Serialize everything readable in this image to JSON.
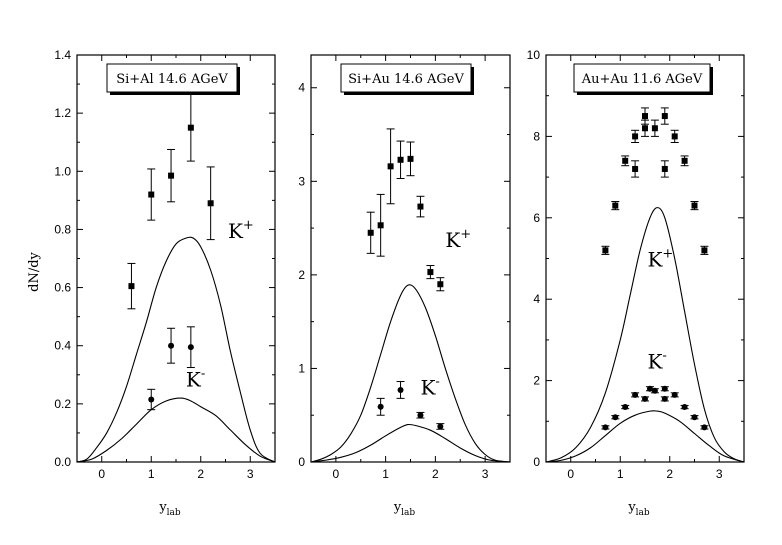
{
  "ylabel": "dN/dy",
  "xlabel": {
    "main": "y",
    "sub": "lab"
  },
  "chart_data": [
    {
      "type": "scatter",
      "title": "Si+Al 14.6 AGeV",
      "xlim": [
        -0.5,
        3.5
      ],
      "ylim": [
        0,
        1.4
      ],
      "x_ticks": [
        0,
        1,
        2,
        3
      ],
      "y_ticks": [
        0.0,
        0.2,
        0.4,
        0.6,
        0.8,
        1.0,
        1.2,
        1.4
      ],
      "y_tick_labels": [
        "0.0",
        "0.2",
        "0.4",
        "0.6",
        "0.8",
        "1.0",
        "1.2",
        "1.4"
      ],
      "series": [
        {
          "name": "K+",
          "kind": "data",
          "marker": "square",
          "x": [
            0.6,
            1.0,
            1.4,
            1.8,
            2.2
          ],
          "y": [
            0.605,
            0.92,
            0.985,
            1.15,
            0.89
          ],
          "err": [
            0.078,
            0.088,
            0.09,
            0.115,
            0.125
          ]
        },
        {
          "name": "K-",
          "kind": "data",
          "marker": "circle",
          "x": [
            1.0,
            1.4,
            1.8
          ],
          "y": [
            0.215,
            0.4,
            0.395
          ],
          "err": [
            0.035,
            0.06,
            0.07
          ]
        },
        {
          "name": "K+",
          "kind": "model",
          "x": [
            -0.5,
            -0.3,
            -0.1,
            0.1,
            0.3,
            0.5,
            0.7,
            0.9,
            1.1,
            1.3,
            1.5,
            1.7,
            1.85,
            2.0,
            2.2,
            2.4,
            2.6,
            2.8,
            3.0,
            3.2,
            3.5
          ],
          "y": [
            0.0,
            0.01,
            0.05,
            0.1,
            0.17,
            0.26,
            0.37,
            0.48,
            0.6,
            0.69,
            0.75,
            0.77,
            0.77,
            0.74,
            0.66,
            0.54,
            0.38,
            0.24,
            0.11,
            0.03,
            0.0
          ]
        },
        {
          "name": "K-",
          "kind": "model",
          "x": [
            -0.5,
            -0.2,
            0.1,
            0.4,
            0.7,
            1.0,
            1.3,
            1.6,
            1.8,
            2.0,
            2.3,
            2.6,
            2.9,
            3.2,
            3.5
          ],
          "y": [
            0.0,
            0.01,
            0.04,
            0.08,
            0.13,
            0.18,
            0.21,
            0.22,
            0.21,
            0.19,
            0.16,
            0.11,
            0.06,
            0.02,
            0.0
          ]
        }
      ],
      "labels": [
        {
          "text": "K",
          "sup": "+",
          "x": 2.55,
          "y": 0.77
        },
        {
          "text": "K",
          "sup": "-",
          "x": 1.7,
          "y": 0.26
        }
      ]
    },
    {
      "type": "scatter",
      "title": "Si+Au 14.6 AGeV",
      "xlim": [
        -0.5,
        3.5
      ],
      "ylim": [
        0,
        4.35
      ],
      "x_ticks": [
        0,
        1,
        2,
        3
      ],
      "y_ticks": [
        0,
        1,
        2,
        3,
        4
      ],
      "y_tick_labels": [
        "0",
        "1",
        "2",
        "3",
        "4"
      ],
      "series": [
        {
          "name": "K+",
          "kind": "data",
          "marker": "square",
          "x": [
            0.7,
            0.9,
            1.1,
            1.3,
            1.5,
            1.7,
            1.9,
            2.1
          ],
          "y": [
            2.45,
            2.53,
            3.16,
            3.23,
            3.24,
            2.73,
            2.03,
            1.9
          ],
          "err": [
            0.22,
            0.33,
            0.4,
            0.2,
            0.18,
            0.11,
            0.07,
            0.07
          ]
        },
        {
          "name": "K-",
          "kind": "data",
          "marker": "circle",
          "x": [
            0.9,
            1.3,
            1.7,
            2.1
          ],
          "y": [
            0.59,
            0.77,
            0.5,
            0.38
          ],
          "err": [
            0.09,
            0.09,
            0.03,
            0.03
          ]
        },
        {
          "name": "K+",
          "kind": "model",
          "x": [
            -0.5,
            -0.3,
            -0.1,
            0.1,
            0.3,
            0.5,
            0.7,
            0.9,
            1.1,
            1.3,
            1.45,
            1.6,
            1.8,
            2.0,
            2.2,
            2.4,
            2.6,
            2.8,
            3.0,
            3.2,
            3.5
          ],
          "y": [
            0.0,
            0.03,
            0.08,
            0.16,
            0.3,
            0.5,
            0.8,
            1.15,
            1.5,
            1.78,
            1.89,
            1.85,
            1.65,
            1.35,
            1.0,
            0.68,
            0.4,
            0.2,
            0.08,
            0.02,
            0.0
          ]
        },
        {
          "name": "K-",
          "kind": "model",
          "x": [
            -0.5,
            -0.2,
            0.1,
            0.4,
            0.7,
            1.0,
            1.3,
            1.45,
            1.6,
            1.9,
            2.2,
            2.5,
            2.8,
            3.1,
            3.5
          ],
          "y": [
            0.0,
            0.02,
            0.05,
            0.1,
            0.18,
            0.28,
            0.37,
            0.4,
            0.39,
            0.34,
            0.25,
            0.15,
            0.07,
            0.02,
            0.0
          ]
        }
      ],
      "labels": [
        {
          "text": "K",
          "sup": "+",
          "x": 2.2,
          "y": 2.3
        },
        {
          "text": "K",
          "sup": "-",
          "x": 1.7,
          "y": 0.72
        }
      ]
    },
    {
      "type": "scatter",
      "title": "Au+Au 11.6 AGeV",
      "xlim": [
        -0.5,
        3.5
      ],
      "ylim": [
        0,
        10
      ],
      "x_ticks": [
        0,
        1,
        2,
        3
      ],
      "y_ticks": [
        0,
        2,
        4,
        6,
        8,
        10
      ],
      "y_tick_labels": [
        "0",
        "2",
        "4",
        "6",
        "8",
        "10"
      ],
      "series": [
        {
          "name": "K+",
          "kind": "data",
          "marker": "square",
          "x": [
            0.7,
            0.9,
            1.1,
            1.3,
            1.3,
            1.5,
            1.5,
            1.7,
            1.9,
            1.9,
            2.1,
            2.3,
            2.5,
            2.7
          ],
          "y": [
            5.2,
            6.3,
            7.4,
            7.2,
            8.0,
            8.2,
            8.5,
            8.2,
            7.2,
            8.5,
            8.0,
            7.4,
            6.3,
            5.2
          ],
          "err": [
            0.1,
            0.1,
            0.12,
            0.2,
            0.15,
            0.2,
            0.2,
            0.2,
            0.2,
            0.2,
            0.15,
            0.12,
            0.1,
            0.1
          ]
        },
        {
          "name": "K-",
          "kind": "data",
          "marker": "circle",
          "x": [
            0.7,
            0.9,
            1.1,
            1.3,
            1.5,
            1.6,
            1.7,
            1.9,
            1.9,
            2.1,
            2.3,
            2.5,
            2.7
          ],
          "y": [
            0.85,
            1.1,
            1.35,
            1.65,
            1.55,
            1.8,
            1.75,
            1.55,
            1.8,
            1.65,
            1.35,
            1.1,
            0.85
          ],
          "err": [
            0.04,
            0.04,
            0.04,
            0.05,
            0.05,
            0.05,
            0.05,
            0.05,
            0.05,
            0.05,
            0.04,
            0.04,
            0.04
          ]
        },
        {
          "name": "K+",
          "kind": "model",
          "x": [
            -0.5,
            -0.2,
            0.1,
            0.4,
            0.7,
            1.0,
            1.2,
            1.4,
            1.6,
            1.75,
            1.9,
            2.1,
            2.3,
            2.5,
            2.7,
            2.9,
            3.1,
            3.3,
            3.5
          ],
          "y": [
            0.0,
            0.1,
            0.35,
            0.85,
            1.7,
            3.0,
            4.1,
            5.2,
            6.0,
            6.25,
            6.0,
            5.0,
            3.7,
            2.4,
            1.3,
            0.6,
            0.25,
            0.08,
            0.0
          ]
        },
        {
          "name": "K-",
          "kind": "model",
          "x": [
            -0.5,
            -0.2,
            0.1,
            0.4,
            0.7,
            1.0,
            1.3,
            1.6,
            1.75,
            1.9,
            2.2,
            2.5,
            2.8,
            3.1,
            3.5
          ],
          "y": [
            0.0,
            0.04,
            0.15,
            0.35,
            0.65,
            0.95,
            1.15,
            1.25,
            1.25,
            1.2,
            1.0,
            0.7,
            0.4,
            0.15,
            0.0
          ]
        }
      ],
      "labels": [
        {
          "text": "K",
          "sup": "+",
          "x": 1.55,
          "y": 4.8
        },
        {
          "text": "K",
          "sup": "-",
          "x": 1.55,
          "y": 2.3
        }
      ]
    }
  ]
}
